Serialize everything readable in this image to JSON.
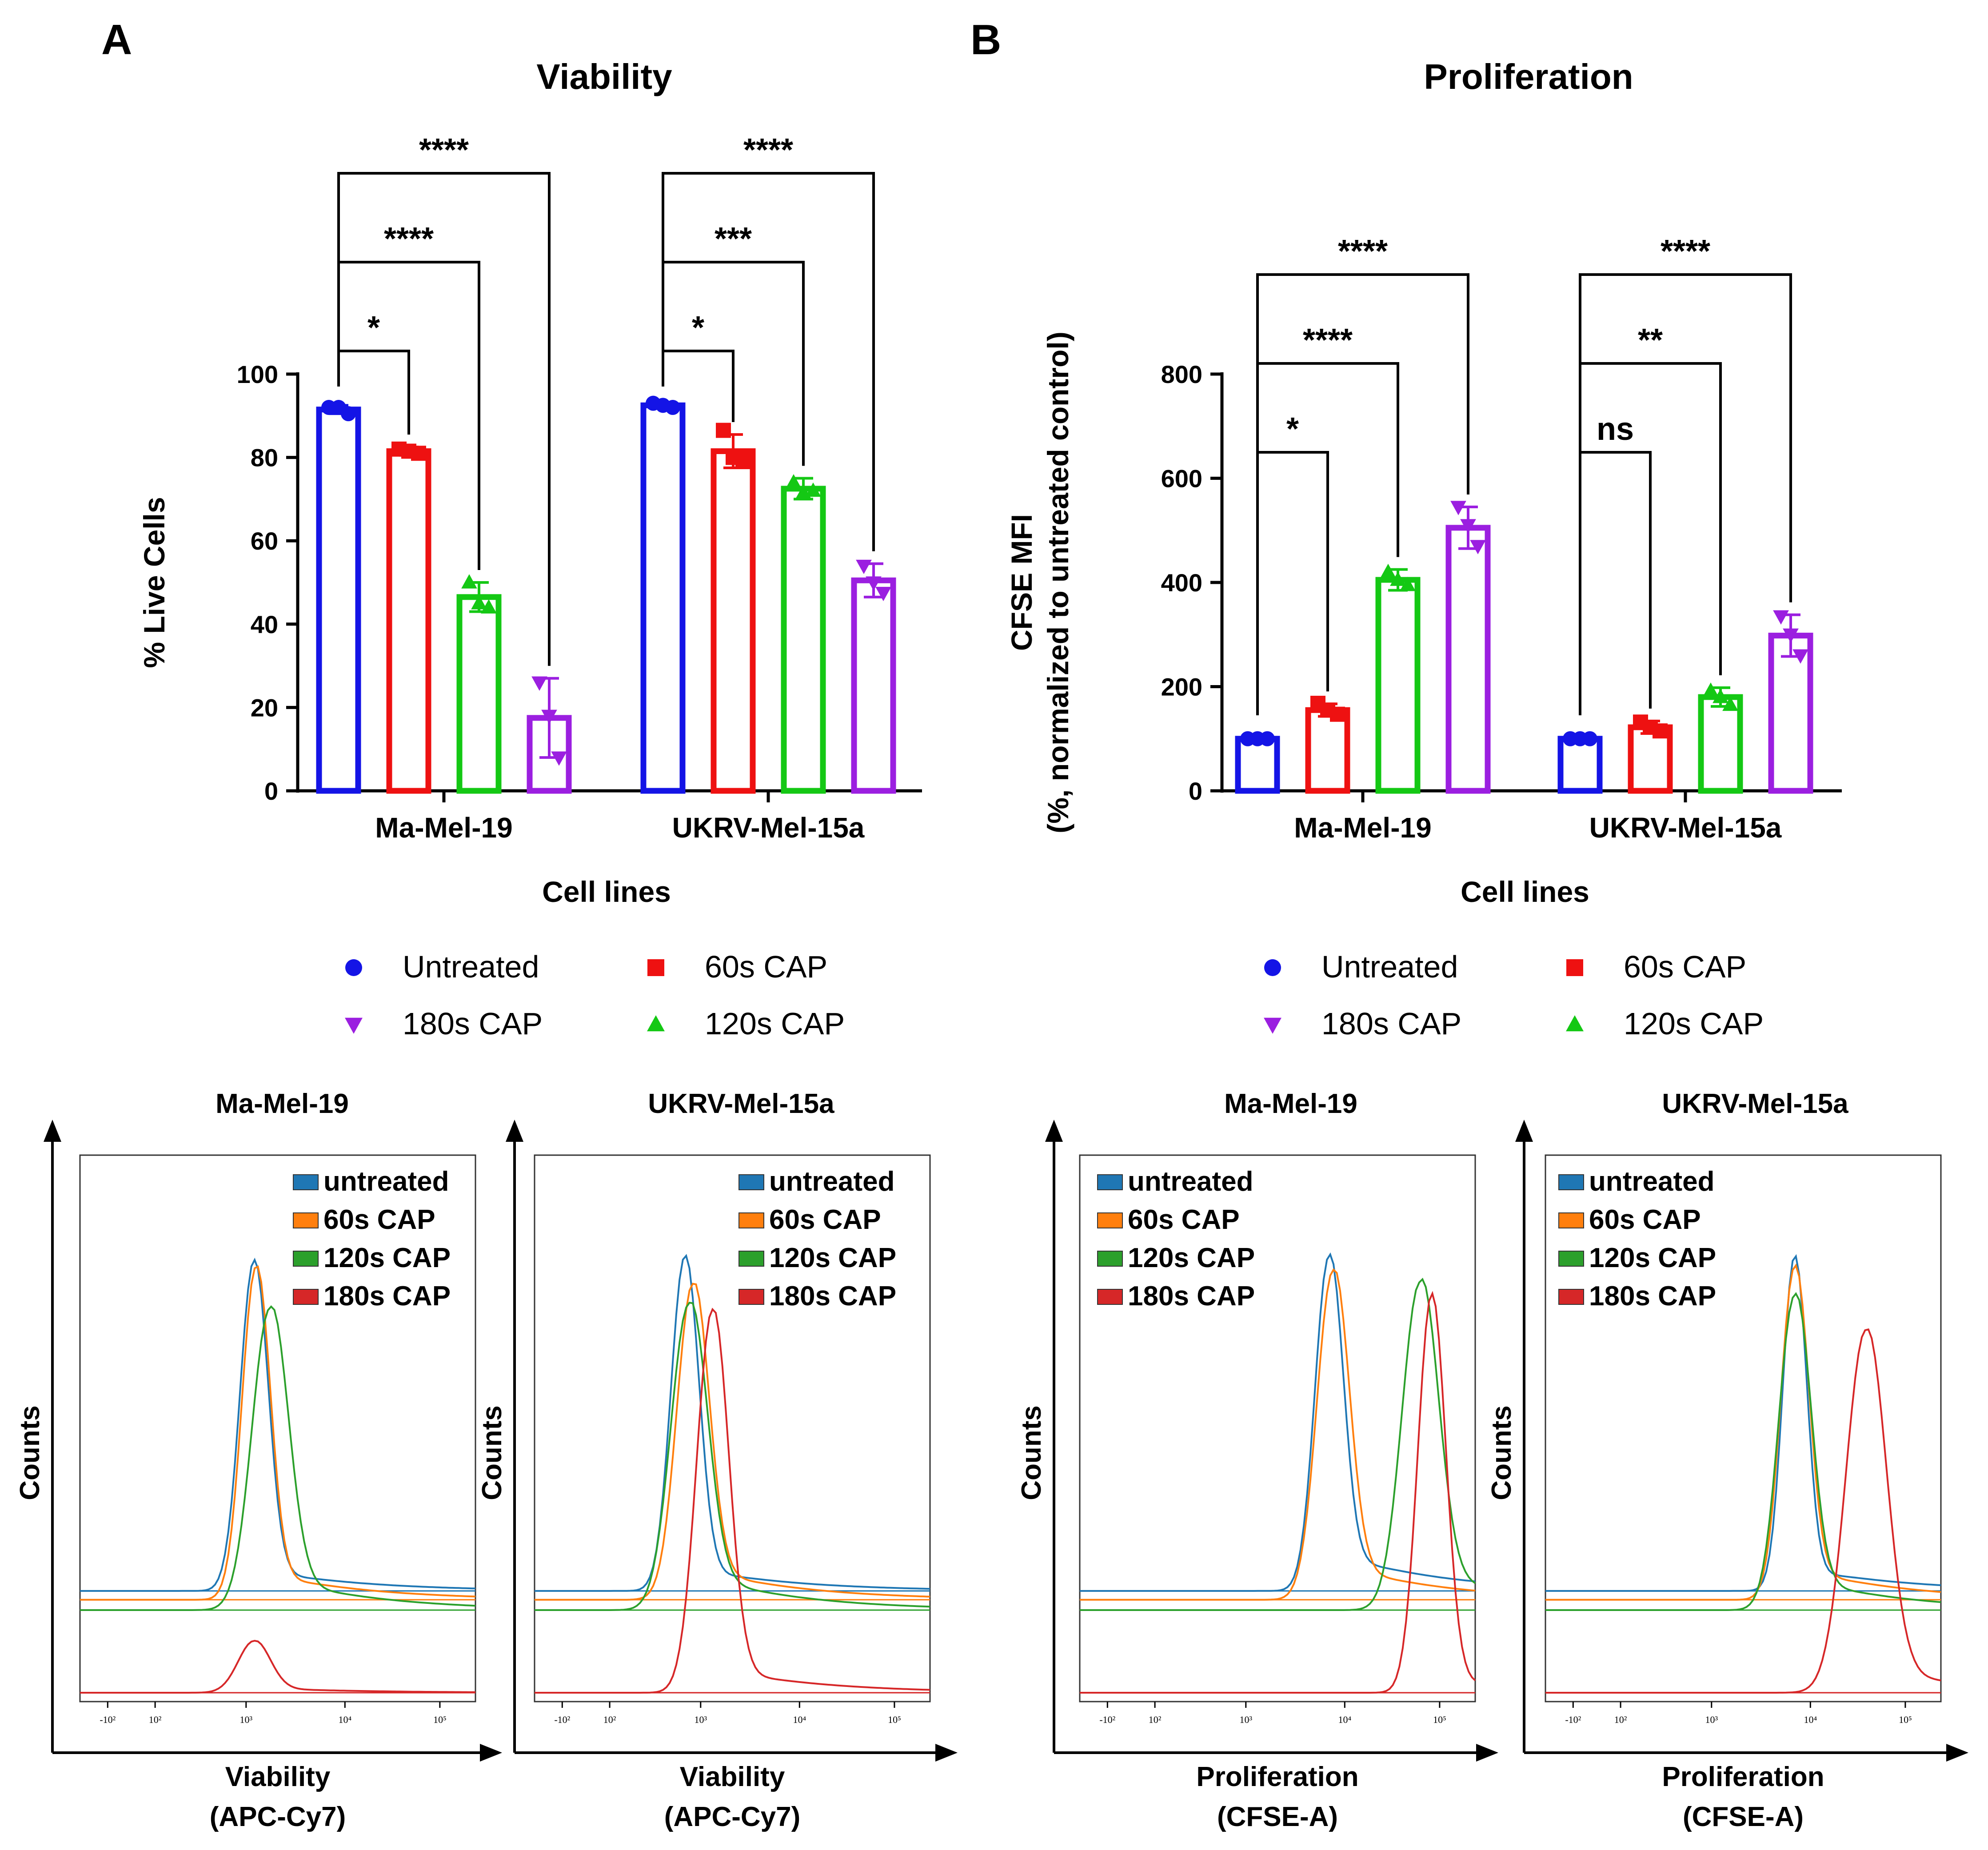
{
  "panels": {
    "A": {
      "letter": "A",
      "chart_data": {
        "type": "bar",
        "title": "Viability",
        "ylabel": "% Live Cells",
        "xlabel": "Cell lines",
        "ylim": [
          0,
          100
        ],
        "yticks": [
          "0",
          "20",
          "40",
          "60",
          "80",
          "100"
        ],
        "categories": [
          "Ma-Mel-19",
          "UKRV-Mel-15a"
        ],
        "series": [
          {
            "name": "Untreated",
            "values": [
              91.5,
              92.5
            ],
            "sd": [
              1.0,
              0.7
            ],
            "points": [
              [
                92,
                92,
                90.5
              ],
              [
                93,
                92.5,
                92
              ]
            ]
          },
          {
            "name": "60s CAP",
            "values": [
              81.5,
              81.5
            ],
            "sd": [
              1.0,
              4.0
            ],
            "points": [
              [
                82,
                81.5,
                81
              ],
              [
                86.5,
                80,
                79
              ]
            ]
          },
          {
            "name": "120s CAP",
            "values": [
              46.5,
              72.5
            ],
            "sd": [
              3.5,
              2.5
            ],
            "points": [
              [
                50,
                45,
                44
              ],
              [
                74,
                71.5,
                72
              ]
            ]
          },
          {
            "name": "180s CAP",
            "values": [
              17.5,
              50.5
            ],
            "sd": [
              9.5,
              4.0
            ],
            "points": [
              [
                26,
                18,
                8
              ],
              [
                54,
                50,
                47.5
              ]
            ]
          }
        ],
        "significance": [
          {
            "category": 0,
            "compare": [
              0,
              1
            ],
            "label": "*"
          },
          {
            "category": 0,
            "compare": [
              0,
              2
            ],
            "label": "****"
          },
          {
            "category": 0,
            "compare": [
              0,
              3
            ],
            "label": "****"
          },
          {
            "category": 1,
            "compare": [
              0,
              1
            ],
            "label": "*"
          },
          {
            "category": 1,
            "compare": [
              0,
              2
            ],
            "label": "***"
          },
          {
            "category": 1,
            "compare": [
              0,
              3
            ],
            "label": "****"
          }
        ],
        "legend": [
          "Untreated",
          "60s CAP",
          "180s CAP",
          "120s CAP"
        ]
      }
    },
    "B": {
      "letter": "B",
      "chart_data": {
        "type": "bar",
        "title": "Proliferation",
        "ylabel_line1": "CFSE MFI",
        "ylabel_line2": "(%, normalized to untreated control)",
        "xlabel": "Cell lines",
        "ylim": [
          0,
          800
        ],
        "yticks": [
          "0",
          "200",
          "400",
          "600",
          "800"
        ],
        "categories": [
          "Ma-Mel-19",
          "UKRV-Mel-15a"
        ],
        "series": [
          {
            "name": "Untreated",
            "values": [
              100,
              100
            ],
            "sd": [
              0,
              0
            ],
            "points": [
              [
                100,
                100,
                100
              ],
              [
                100,
                100,
                100
              ]
            ]
          },
          {
            "name": "60s CAP",
            "values": [
              155,
              122
            ],
            "sd": [
              12,
              12
            ],
            "points": [
              [
                168,
                155,
                147
              ],
              [
                132,
                122,
                115
              ]
            ]
          },
          {
            "name": "120s CAP",
            "values": [
              405,
              180
            ],
            "sd": [
              20,
              18
            ],
            "points": [
              [
                420,
                405,
                395
              ],
              [
                192,
                180,
                165
              ]
            ]
          },
          {
            "name": "180s CAP",
            "values": [
              505,
              298
            ],
            "sd": [
              40,
              40
            ],
            "points": [
              [
                545,
                510,
                470
              ],
              [
                335,
                300,
                260
              ]
            ]
          }
        ],
        "significance": [
          {
            "category": 0,
            "compare": [
              0,
              1
            ],
            "label": "*"
          },
          {
            "category": 0,
            "compare": [
              0,
              2
            ],
            "label": "****"
          },
          {
            "category": 0,
            "compare": [
              0,
              3
            ],
            "label": "****"
          },
          {
            "category": 1,
            "compare": [
              0,
              1
            ],
            "label": "ns"
          },
          {
            "category": 1,
            "compare": [
              0,
              2
            ],
            "label": "**"
          },
          {
            "category": 1,
            "compare": [
              0,
              3
            ],
            "label": "****"
          }
        ],
        "legend": [
          "Untreated",
          "60s CAP",
          "180s CAP",
          "120s CAP"
        ]
      }
    }
  },
  "legend_labels": {
    "untreated": "Untreated",
    "cap60": "60s CAP",
    "cap180": "180s CAP",
    "cap120": "120s CAP"
  },
  "colors": {
    "untreated": "#1414e6",
    "cap60": "#ee1111",
    "cap120": "#14c814",
    "cap180": "#9b1fe0",
    "hist_untreated": "#1f77b4",
    "hist_60": "#ff7f0e",
    "hist_120": "#2ca02c",
    "hist_180": "#d62728"
  },
  "histograms": [
    {
      "title": "Ma-Mel-19",
      "ylabel": "Counts",
      "xlabel_line1": "Viability",
      "xlabel_line2": "(APC-Cy7)",
      "legend": [
        "untreated",
        "60s CAP",
        "120s CAP",
        "180s CAP"
      ],
      "axis_ticks": [
        "-10²",
        "10²",
        "10³",
        "10⁴",
        "10⁵"
      ]
    },
    {
      "title": "UKRV-Mel-15a",
      "ylabel": "Counts",
      "xlabel_line1": "Viability",
      "xlabel_line2": "(APC-Cy7)",
      "legend": [
        "untreated",
        "60s CAP",
        "120s CAP",
        "180s CAP"
      ],
      "axis_ticks": [
        "-10²",
        "10²",
        "10³",
        "10⁴",
        "10⁵"
      ]
    },
    {
      "title": "Ma-Mel-19",
      "ylabel": "Counts",
      "xlabel_line1": "Proliferation",
      "xlabel_line2": "(CFSE-A)",
      "legend": [
        "untreated",
        "60s CAP",
        "120s CAP",
        "180s CAP"
      ],
      "axis_ticks": [
        "-10²",
        "10²",
        "10³",
        "10⁴",
        "10⁵"
      ]
    },
    {
      "title": "UKRV-Mel-15a",
      "ylabel": "Counts",
      "xlabel_line1": "Proliferation",
      "xlabel_line2": "(CFSE-A)",
      "legend": [
        "untreated",
        "60s CAP",
        "120s CAP",
        "180s CAP"
      ],
      "axis_ticks": [
        "-10²",
        "10²",
        "10³",
        "10⁴",
        "10⁵"
      ]
    }
  ]
}
